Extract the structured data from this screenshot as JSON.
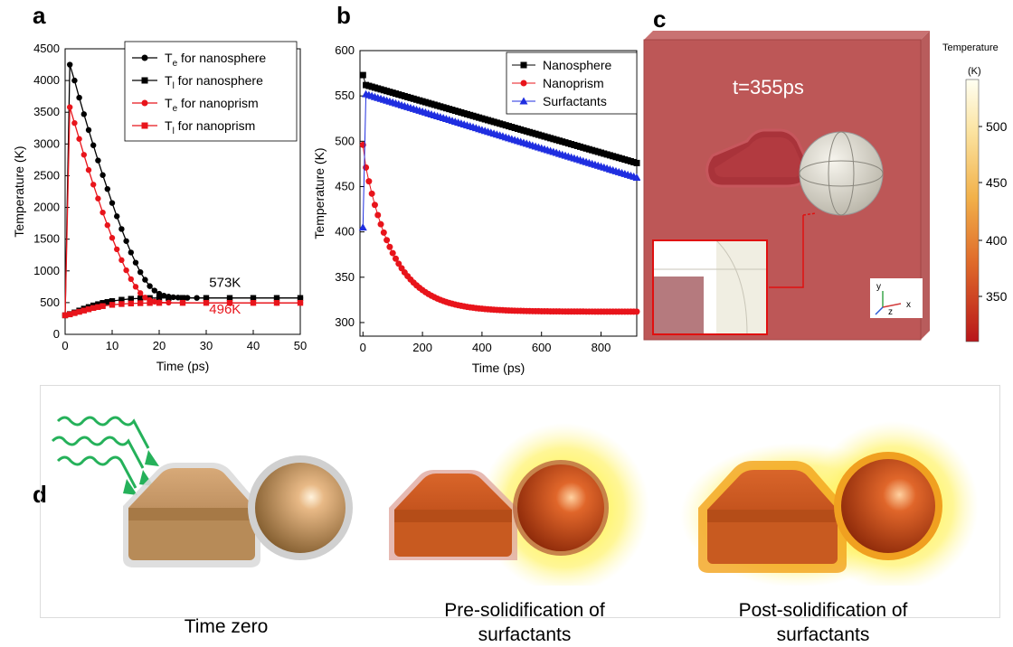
{
  "panels": {
    "a": "a",
    "b": "b",
    "c": "c",
    "d": "d"
  },
  "chart_data": [
    {
      "type": "line",
      "panel": "a",
      "xlabel": "Time (ps)",
      "ylabel": "Temperature (K)",
      "xlim": [
        0,
        50
      ],
      "ylim": [
        0,
        4500
      ],
      "xticks": [
        "0",
        "10",
        "20",
        "30",
        "40",
        "50"
      ],
      "yticks": [
        "0",
        "500",
        "1000",
        "1500",
        "2000",
        "2500",
        "3000",
        "3500",
        "4000",
        "4500"
      ],
      "legend_position": "top-right",
      "series": [
        {
          "name": "T_e for nanosphere",
          "name_main": "T",
          "name_sub": "e",
          "name_tail": " for nanosphere",
          "color": "#000000",
          "marker": "circle",
          "x": [
            0,
            1,
            2,
            3,
            4,
            5,
            6,
            7,
            8,
            9,
            10,
            11,
            12,
            13,
            14,
            15,
            16,
            17,
            18,
            19,
            20,
            21,
            22,
            23,
            24,
            26,
            28,
            30,
            35,
            40,
            45,
            50
          ],
          "y": [
            300,
            4250,
            4000,
            3730,
            3470,
            3220,
            2980,
            2740,
            2510,
            2290,
            2070,
            1860,
            1660,
            1470,
            1290,
            1130,
            980,
            860,
            760,
            690,
            640,
            610,
            595,
            585,
            580,
            576,
            574,
            573,
            573,
            573,
            573,
            573
          ]
        },
        {
          "name": "T_l for nanosphere",
          "name_main": "T",
          "name_sub": "l",
          "name_tail": "  for nanosphere",
          "color": "#000000",
          "marker": "square",
          "x": [
            0,
            1,
            2,
            3,
            4,
            5,
            6,
            7,
            8,
            9,
            10,
            12,
            14,
            16,
            18,
            20,
            22,
            25,
            30,
            35,
            40,
            45,
            50
          ],
          "y": [
            300,
            320,
            345,
            375,
            405,
            430,
            455,
            475,
            495,
            510,
            525,
            545,
            560,
            568,
            572,
            573,
            574,
            574,
            573,
            573,
            573,
            573,
            573
          ]
        },
        {
          "name": "T_e for nanoprism",
          "name_main": "T",
          "name_sub": "e",
          "name_tail": " for nanoprism",
          "color": "#e8141b",
          "marker": "circle",
          "x": [
            0,
            1,
            2,
            3,
            4,
            5,
            6,
            7,
            8,
            9,
            10,
            11,
            12,
            13,
            14,
            15,
            16,
            17,
            18,
            19,
            20,
            22,
            25,
            30,
            35,
            40,
            45,
            50
          ],
          "y": [
            300,
            3580,
            3330,
            3080,
            2830,
            2590,
            2360,
            2140,
            1920,
            1720,
            1520,
            1340,
            1170,
            1010,
            870,
            750,
            650,
            580,
            540,
            515,
            505,
            500,
            498,
            497,
            496,
            496,
            496,
            496
          ]
        },
        {
          "name": "T_l for nanoprism",
          "name_main": "T",
          "name_sub": "l",
          "name_tail": "  for nanoprism",
          "color": "#e8141b",
          "marker": "square",
          "x": [
            0,
            1,
            2,
            3,
            4,
            5,
            6,
            7,
            8,
            10,
            12,
            14,
            16,
            18,
            20,
            25,
            30,
            35,
            40,
            45,
            50
          ],
          "y": [
            300,
            315,
            335,
            355,
            375,
            395,
            415,
            430,
            445,
            465,
            478,
            486,
            491,
            494,
            495,
            496,
            496,
            496,
            496,
            496,
            496
          ]
        }
      ],
      "annotations": [
        {
          "text": "573K",
          "x": 34,
          "y": 750,
          "color": "#000000"
        },
        {
          "text": "496K",
          "x": 34,
          "y": 330,
          "color": "#e8141b"
        }
      ]
    },
    {
      "type": "line",
      "panel": "b",
      "xlabel": "Time (ps)",
      "ylabel": "Temperature (K)",
      "xlim": [
        -10,
        920
      ],
      "ylim": [
        285,
        600
      ],
      "xticks": [
        0,
        200,
        400,
        600,
        800
      ],
      "yticks": [
        300,
        350,
        400,
        450,
        500,
        550,
        600
      ],
      "legend_position": "top-right",
      "series": [
        {
          "name": "Nanosphere",
          "color": "#000000",
          "marker": "square",
          "model": {
            "start": 573,
            "peak": 562,
            "end": 476
          }
        },
        {
          "name": "Nanoprism",
          "color": "#e8141b",
          "marker": "circle",
          "model": {
            "start": 496,
            "peak": 471,
            "asymptote": 312
          }
        },
        {
          "name": "Surfactants",
          "color": "#1f2ee0",
          "marker": "triangle",
          "model": {
            "start": 405,
            "peak": 552,
            "end": 460
          }
        }
      ]
    }
  ],
  "panel_c": {
    "time_label": "t=355ps",
    "colorbar_title": "Temperature",
    "colorbar_unit": "(K)",
    "colorbar_ticks": [
      "500",
      "450",
      "400",
      "350"
    ],
    "axis_y": "y",
    "axis_z": "z",
    "axis_x": "x"
  },
  "panel_d": {
    "captions": [
      {
        "line1": "Time zero",
        "line2": ""
      },
      {
        "line1": "Pre-solidification of",
        "line2": "surfactants"
      },
      {
        "line1": "Post-solidification of",
        "line2": "surfactants"
      }
    ]
  }
}
